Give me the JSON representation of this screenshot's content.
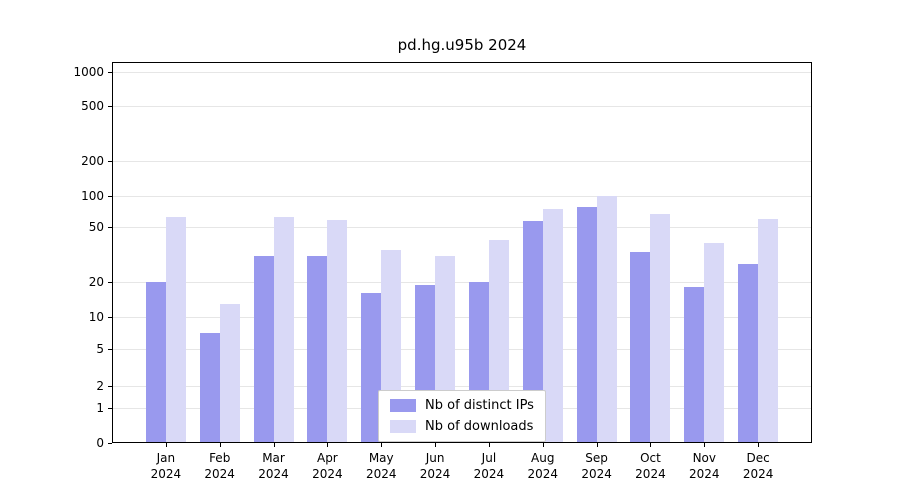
{
  "chart_data": {
    "type": "bar",
    "title": "pd.hg.u95b 2024",
    "year": "2024",
    "categories": [
      "Jan",
      "Feb",
      "Mar",
      "Apr",
      "May",
      "Jun",
      "Jul",
      "Aug",
      "Sep",
      "Oct",
      "Nov",
      "Dec"
    ],
    "series": [
      {
        "name": "Nb of distinct IPs",
        "color": "#9999ee",
        "values": [
          20,
          7,
          31,
          31,
          16,
          19,
          20,
          57,
          78,
          33,
          18,
          27
        ]
      },
      {
        "name": "Nb of downloads",
        "color": "#d9d9f7",
        "values": [
          62,
          13,
          62,
          58,
          34,
          31,
          40,
          75,
          100,
          67,
          38,
          60
        ]
      }
    ],
    "yticks": [
      0,
      1,
      2,
      5,
      10,
      20,
      50,
      100,
      200,
      500,
      1000
    ],
    "yscale": "symlog",
    "xlabel": "",
    "ylabel": "",
    "grid": true,
    "legend_position": "bottom-center"
  },
  "colors": {
    "grid": "#e6e6e6",
    "axis": "#000000",
    "background": "#ffffff",
    "legend_border": "#cccccc"
  }
}
